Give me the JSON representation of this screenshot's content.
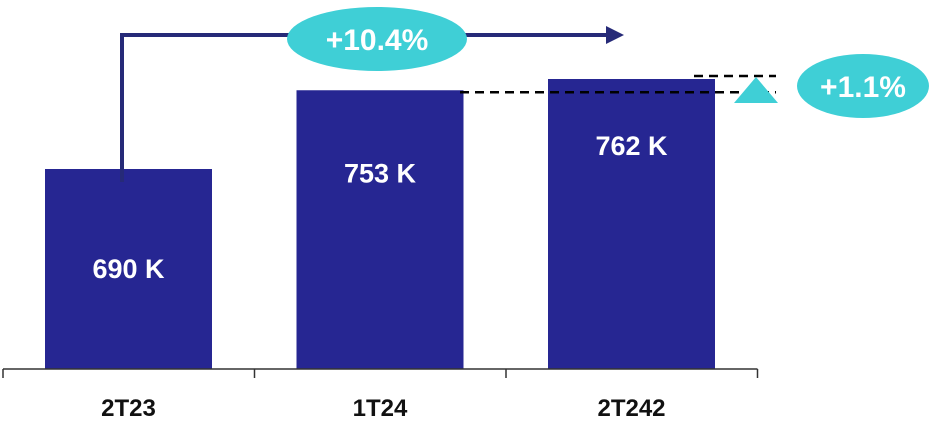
{
  "chart_data": {
    "type": "bar",
    "categories": [
      "2T23",
      "1T24",
      "2T242"
    ],
    "values": [
      690,
      753,
      762
    ],
    "value_labels": [
      "690 K",
      "753 K",
      "762 K"
    ],
    "ylim": [
      0,
      800
    ],
    "grid": false,
    "legend": "none",
    "annotations": [
      {
        "text": "+10.4%",
        "from": "2T23",
        "to": "2T242"
      },
      {
        "text": "+1.1%",
        "from": "1T24",
        "to": "2T242"
      }
    ],
    "colors": {
      "bar": "#262692",
      "arrow": "#262a78",
      "bubble": "#3fcfd6",
      "axis": "#333333"
    }
  }
}
